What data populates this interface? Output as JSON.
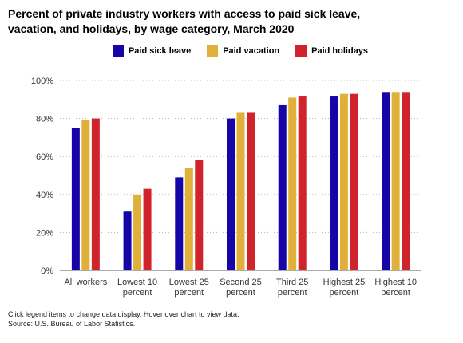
{
  "title": "Percent of private industry workers with access to paid sick leave, vacation, and holidays, by wage category, March 2020",
  "legend": [
    {
      "label": "Paid sick leave",
      "color": "#1505a6"
    },
    {
      "label": "Paid vacation",
      "color": "#e0b03a"
    },
    {
      "label": "Paid holidays",
      "color": "#d0232b"
    }
  ],
  "footer": {
    "note": "Click legend items to change data display. Hover over chart to view data.",
    "source": "Source: U.S. Bureau of Labor Statistics."
  },
  "chart_data": {
    "type": "bar",
    "title": "Percent of private industry workers with access to paid sick leave, vacation, and holidays, by wage category, March 2020",
    "xlabel": "",
    "ylabel": "",
    "ylim": [
      0,
      100
    ],
    "y_ticks": [
      "0%",
      "20%",
      "40%",
      "60%",
      "80%",
      "100%"
    ],
    "grid": true,
    "legend_position": "top-center",
    "categories": [
      [
        "All workers"
      ],
      [
        "Lowest 10",
        "percent"
      ],
      [
        "Lowest 25",
        "percent"
      ],
      [
        "Second 25",
        "percent"
      ],
      [
        "Third 25",
        "percent"
      ],
      [
        "Highest 25",
        "percent"
      ],
      [
        "Highest 10",
        "percent"
      ]
    ],
    "series": [
      {
        "name": "Paid sick leave",
        "color": "#1505a6",
        "values": [
          75,
          31,
          49,
          80,
          87,
          92,
          94
        ]
      },
      {
        "name": "Paid vacation",
        "color": "#e0b03a",
        "values": [
          79,
          40,
          54,
          83,
          91,
          93,
          94
        ]
      },
      {
        "name": "Paid holidays",
        "color": "#d0232b",
        "values": [
          80,
          43,
          58,
          83,
          92,
          93,
          94
        ]
      }
    ]
  }
}
